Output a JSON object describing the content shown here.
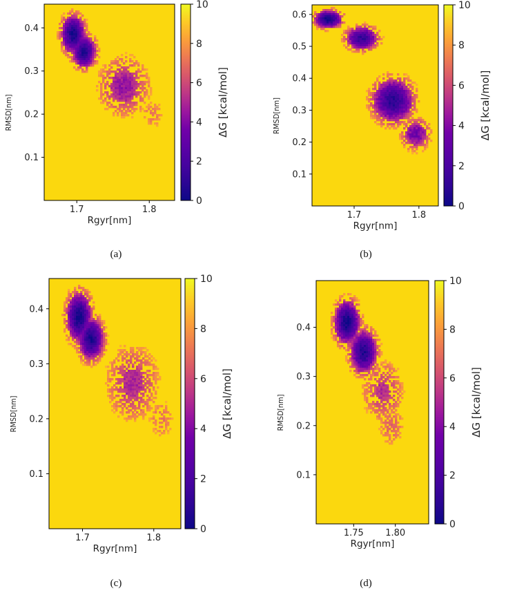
{
  "figure": {
    "captions": [
      "(a)",
      "(b)",
      "(c)",
      "(d)"
    ]
  },
  "colors": {
    "cmap": [
      "#0d0887",
      "#2c0594",
      "#46039f",
      "#5c01a6",
      "#7201a8",
      "#9c179e",
      "#bd3786",
      "#d8576b",
      "#ed7953",
      "#fb9f3a",
      "#fdca26",
      "#f0f921"
    ],
    "background": "#fbd80e",
    "axis": "#000000"
  },
  "chart_data": [
    {
      "type": "heatmap",
      "panel": "(a)",
      "xlabel": "Rgyr[nm]",
      "ylabel": "RMSD[nm]",
      "colorbar_label": "ΔG [kcal/mol]",
      "xlim": [
        1.655,
        1.835
      ],
      "ylim": [
        0.0,
        0.455
      ],
      "xticks": [
        1.7,
        1.8
      ],
      "xtick_labels": [
        "1.7",
        "1.8"
      ],
      "yticks": [
        0.1,
        0.2,
        0.3,
        0.4
      ],
      "ytick_labels": [
        "0.1",
        "0.2",
        "0.3",
        "0.4"
      ],
      "cbar_range": [
        0,
        10
      ],
      "cbar_ticks": [
        0,
        2,
        4,
        6,
        8,
        10
      ],
      "cbar_tick_labels": [
        "0",
        "2",
        "4",
        "6",
        "8",
        "10"
      ],
      "basins": [
        {
          "x": 1.695,
          "y": 0.385,
          "sx": 0.013,
          "sy": 0.035,
          "depth": 9.6
        },
        {
          "x": 1.71,
          "y": 0.345,
          "sx": 0.013,
          "sy": 0.03,
          "depth": 9.3
        },
        {
          "x": 1.765,
          "y": 0.265,
          "sx": 0.028,
          "sy": 0.055,
          "depth": 5.5
        },
        {
          "x": 1.805,
          "y": 0.2,
          "sx": 0.018,
          "sy": 0.035,
          "depth": 3.0
        }
      ]
    },
    {
      "type": "heatmap",
      "panel": "(b)",
      "xlabel": "Rgyr[nm]",
      "ylabel": "RMSD[nm]",
      "colorbar_label": "ΔG [kcal/mol]",
      "xlim": [
        1.635,
        1.83
      ],
      "ylim": [
        0.0,
        0.63
      ],
      "xticks": [
        1.7,
        1.8
      ],
      "xtick_labels": [
        "1.7",
        "1.8"
      ],
      "yticks": [
        0.1,
        0.2,
        0.3,
        0.4,
        0.5,
        0.6
      ],
      "ytick_labels": [
        "0.1",
        "0.2",
        "0.3",
        "0.4",
        "0.5",
        "0.6"
      ],
      "cbar_range": [
        0,
        10
      ],
      "cbar_ticks": [
        0,
        2,
        4,
        6,
        8,
        10
      ],
      "cbar_tick_labels": [
        "0",
        "2",
        "4",
        "6",
        "8",
        "10"
      ],
      "basins": [
        {
          "x": 1.66,
          "y": 0.585,
          "sx": 0.017,
          "sy": 0.022,
          "depth": 9.8
        },
        {
          "x": 1.712,
          "y": 0.525,
          "sx": 0.02,
          "sy": 0.03,
          "depth": 8.6
        },
        {
          "x": 1.76,
          "y": 0.33,
          "sx": 0.025,
          "sy": 0.055,
          "depth": 9.0
        },
        {
          "x": 1.795,
          "y": 0.225,
          "sx": 0.018,
          "sy": 0.04,
          "depth": 6.5
        }
      ]
    },
    {
      "type": "heatmap",
      "panel": "(c)",
      "xlabel": "Rgyr[nm]",
      "ylabel": "RMSD[nm]",
      "colorbar_label": "ΔG [kcal/mol]",
      "xlim": [
        1.653,
        1.838
      ],
      "ylim": [
        0.0,
        0.455
      ],
      "xticks": [
        1.7,
        1.8
      ],
      "xtick_labels": [
        "1.7",
        "1.8"
      ],
      "yticks": [
        0.1,
        0.2,
        0.3,
        0.4
      ],
      "ytick_labels": [
        "0.1",
        "0.2",
        "0.3",
        "0.4"
      ],
      "cbar_range": [
        0,
        10
      ],
      "cbar_ticks": [
        0,
        2,
        4,
        6,
        8,
        10
      ],
      "cbar_tick_labels": [
        "0",
        "2",
        "4",
        "6",
        "8",
        "10"
      ],
      "basins": [
        {
          "x": 1.695,
          "y": 0.385,
          "sx": 0.014,
          "sy": 0.035,
          "depth": 9.6
        },
        {
          "x": 1.712,
          "y": 0.345,
          "sx": 0.014,
          "sy": 0.03,
          "depth": 9.4
        },
        {
          "x": 1.77,
          "y": 0.265,
          "sx": 0.03,
          "sy": 0.055,
          "depth": 5.0
        },
        {
          "x": 1.81,
          "y": 0.2,
          "sx": 0.018,
          "sy": 0.035,
          "depth": 3.2
        }
      ]
    },
    {
      "type": "heatmap",
      "panel": "(d)",
      "xlabel": "Rgyr[nm]",
      "ylabel": "RMSD[nm]",
      "colorbar_label": "ΔG [kcal/mol]",
      "xlim": [
        1.705,
        1.84
      ],
      "ylim": [
        0.0,
        0.495
      ],
      "xticks": [
        1.75,
        1.8
      ],
      "xtick_labels": [
        "1.75",
        "1.80"
      ],
      "yticks": [
        0.1,
        0.2,
        0.3,
        0.4
      ],
      "ytick_labels": [
        "0.1",
        "0.2",
        "0.3",
        "0.4"
      ],
      "cbar_range": [
        0,
        10
      ],
      "cbar_ticks": [
        0,
        2,
        4,
        6,
        8,
        10
      ],
      "cbar_tick_labels": [
        "0",
        "2",
        "4",
        "6",
        "8",
        "10"
      ],
      "basins": [
        {
          "x": 1.742,
          "y": 0.41,
          "sx": 0.012,
          "sy": 0.035,
          "depth": 9.7
        },
        {
          "x": 1.762,
          "y": 0.35,
          "sx": 0.013,
          "sy": 0.035,
          "depth": 9.2
        },
        {
          "x": 1.785,
          "y": 0.27,
          "sx": 0.02,
          "sy": 0.05,
          "depth": 4.8
        },
        {
          "x": 1.795,
          "y": 0.2,
          "sx": 0.015,
          "sy": 0.04,
          "depth": 3.5
        }
      ]
    }
  ]
}
